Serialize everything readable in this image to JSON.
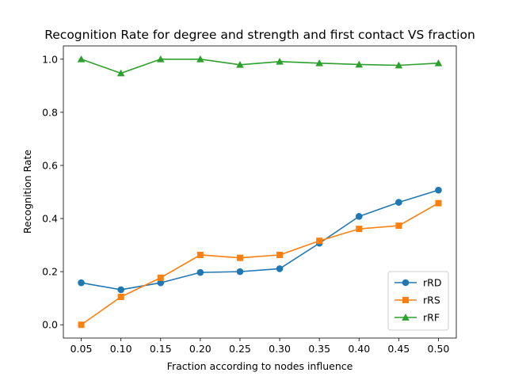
{
  "chart_data": {
    "type": "line",
    "title": "Recognition Rate for degree and strength and first contact VS fraction",
    "xlabel": "Fraction according to nodes influence",
    "ylabel": "Recognition Rate",
    "x": [
      0.05,
      0.1,
      0.15,
      0.2,
      0.25,
      0.3,
      0.35,
      0.4,
      0.45,
      0.5
    ],
    "x_tick_labels": [
      "0.05",
      "0.10",
      "0.15",
      "0.20",
      "0.25",
      "0.30",
      "0.35",
      "0.40",
      "0.45",
      "0.50"
    ],
    "y_ticks": [
      0.0,
      0.2,
      0.4,
      0.6,
      0.8,
      1.0
    ],
    "y_tick_labels": [
      "0.0",
      "0.2",
      "0.4",
      "0.6",
      "0.8",
      "1.0"
    ],
    "xlim": [
      0.0275,
      0.5225
    ],
    "ylim": [
      -0.05,
      1.05
    ],
    "grid": false,
    "legend_position": "lower-right",
    "series": [
      {
        "name": "rRD",
        "color": "#1f77b4",
        "marker": "circle",
        "values": [
          0.158,
          0.132,
          0.158,
          0.197,
          0.2,
          0.211,
          0.307,
          0.408,
          0.461,
          0.507
        ]
      },
      {
        "name": "rRS",
        "color": "#ff7f0e",
        "marker": "square",
        "values": [
          0.0,
          0.105,
          0.177,
          0.263,
          0.252,
          0.263,
          0.316,
          0.361,
          0.373,
          0.458
        ]
      },
      {
        "name": "rRF",
        "color": "#2ca02c",
        "marker": "triangle",
        "values": [
          1.0,
          0.947,
          1.0,
          1.0,
          0.979,
          0.991,
          0.985,
          0.98,
          0.977,
          0.985
        ]
      }
    ]
  }
}
